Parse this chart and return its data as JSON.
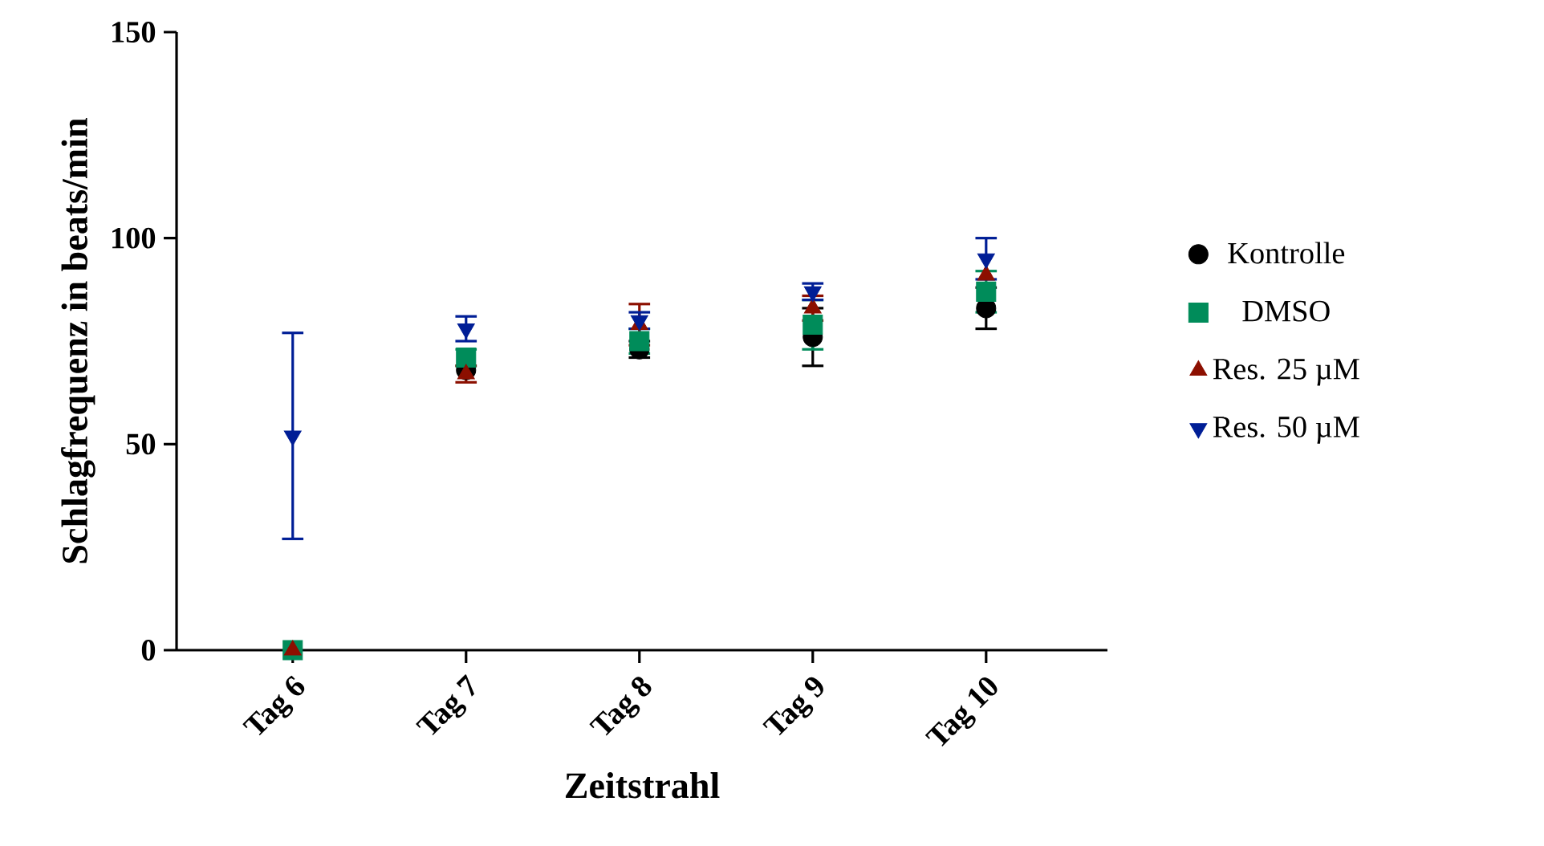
{
  "chart_data": {
    "type": "scatter",
    "xlabel": "Zeitstrahl",
    "ylabel": "Schlagfrequenz in beats/min",
    "categories": [
      "Tag 6",
      "Tag 7",
      "Tag 8",
      "Tag 9",
      "Tag 10"
    ],
    "series": [
      {
        "name": "Kontrolle",
        "color": "#000000",
        "marker": "circle",
        "values": [
          null,
          68,
          73,
          76,
          83
        ],
        "errors": [
          null,
          null,
          2,
          7,
          5
        ]
      },
      {
        "name": "DMSO",
        "color": "#008c5a",
        "marker": "square",
        "values": [
          0,
          71,
          75,
          79,
          87
        ],
        "errors": [
          null,
          2,
          3,
          6,
          5
        ]
      },
      {
        "name": "Res. 25 µM",
        "color": "#8c0f00",
        "marker": "triangle",
        "values": [
          0,
          67,
          79,
          83,
          91
        ],
        "errors": [
          null,
          2,
          5,
          3,
          null
        ]
      },
      {
        "name": "Res. 50 µM",
        "color": "#001e96",
        "marker": "triangle down",
        "values": [
          52,
          78,
          80,
          87,
          95
        ],
        "errors": [
          25,
          3,
          2,
          2,
          5
        ]
      }
    ],
    "ylim": [
      0,
      150
    ],
    "yticks": [
      0,
      50,
      100,
      150
    ],
    "legend": "right",
    "grid": false
  }
}
